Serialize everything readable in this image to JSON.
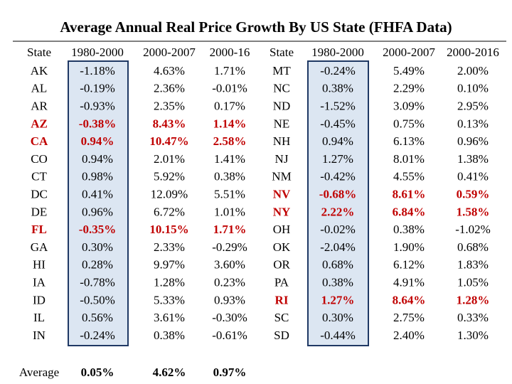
{
  "title": "Average Annual Real Price Growth By US State (FHFA Data)",
  "left": {
    "headers": [
      "State",
      "1980-2000",
      "2000-2007",
      "2000-16"
    ],
    "rows": [
      {
        "cells": [
          "AK",
          "-1.18%",
          "4.63%",
          "1.71%"
        ]
      },
      {
        "cells": [
          "AL",
          "-0.19%",
          "2.36%",
          "-0.01%"
        ]
      },
      {
        "cells": [
          "AR",
          "-0.93%",
          "2.35%",
          "0.17%"
        ]
      },
      {
        "cells": [
          "AZ",
          "-0.38%",
          "8.43%",
          "1.14%"
        ],
        "highlight": true
      },
      {
        "cells": [
          "CA",
          "0.94%",
          "10.47%",
          "2.58%"
        ],
        "highlight": true
      },
      {
        "cells": [
          "CO",
          "0.94%",
          "2.01%",
          "1.41%"
        ]
      },
      {
        "cells": [
          "CT",
          "0.98%",
          "5.92%",
          "0.38%"
        ]
      },
      {
        "cells": [
          "DC",
          "0.41%",
          "12.09%",
          "5.51%"
        ]
      },
      {
        "cells": [
          "DE",
          "0.96%",
          "6.72%",
          "1.01%"
        ]
      },
      {
        "cells": [
          "FL",
          "-0.35%",
          "10.15%",
          "1.71%"
        ],
        "highlight": true
      },
      {
        "cells": [
          "GA",
          "0.30%",
          "2.33%",
          "-0.29%"
        ]
      },
      {
        "cells": [
          "HI",
          "0.28%",
          "9.97%",
          "3.60%"
        ]
      },
      {
        "cells": [
          "IA",
          "-0.78%",
          "1.28%",
          "0.23%"
        ]
      },
      {
        "cells": [
          "ID",
          "-0.50%",
          "5.33%",
          "0.93%"
        ]
      },
      {
        "cells": [
          "IL",
          "0.56%",
          "3.61%",
          "-0.30%"
        ]
      },
      {
        "cells": [
          "IN",
          "-0.24%",
          "0.38%",
          "-0.61%"
        ]
      }
    ]
  },
  "right": {
    "headers": [
      "State",
      "1980-2000",
      "2000-2007",
      "2000-2016"
    ],
    "rows": [
      {
        "cells": [
          "MT",
          "-0.24%",
          "5.49%",
          "2.00%"
        ]
      },
      {
        "cells": [
          "NC",
          "0.38%",
          "2.29%",
          "0.10%"
        ]
      },
      {
        "cells": [
          "ND",
          "-1.52%",
          "3.09%",
          "2.95%"
        ]
      },
      {
        "cells": [
          "NE",
          "-0.45%",
          "0.75%",
          "0.13%"
        ]
      },
      {
        "cells": [
          "NH",
          "0.94%",
          "6.13%",
          "0.96%"
        ]
      },
      {
        "cells": [
          "NJ",
          "1.27%",
          "8.01%",
          "1.38%"
        ]
      },
      {
        "cells": [
          "NM",
          "-0.42%",
          "4.55%",
          "0.41%"
        ]
      },
      {
        "cells": [
          "NV",
          "-0.68%",
          "8.61%",
          "0.59%"
        ],
        "highlight": true
      },
      {
        "cells": [
          "NY",
          "2.22%",
          "6.84%",
          "1.58%"
        ],
        "highlight": true
      },
      {
        "cells": [
          "OH",
          "-0.02%",
          "0.38%",
          "-1.02%"
        ]
      },
      {
        "cells": [
          "OK",
          "-2.04%",
          "1.90%",
          "0.68%"
        ]
      },
      {
        "cells": [
          "OR",
          "0.68%",
          "6.12%",
          "1.83%"
        ]
      },
      {
        "cells": [
          "PA",
          "0.38%",
          "4.91%",
          "1.05%"
        ]
      },
      {
        "cells": [
          "RI",
          "1.27%",
          "8.64%",
          "1.28%"
        ],
        "highlight": true
      },
      {
        "cells": [
          "SC",
          "0.30%",
          "2.75%",
          "0.33%"
        ]
      },
      {
        "cells": [
          "SD",
          "-0.44%",
          "2.40%",
          "1.30%"
        ]
      }
    ]
  },
  "average": {
    "label": "Average",
    "cells": [
      "0.05%",
      "4.62%",
      "0.97%"
    ]
  }
}
